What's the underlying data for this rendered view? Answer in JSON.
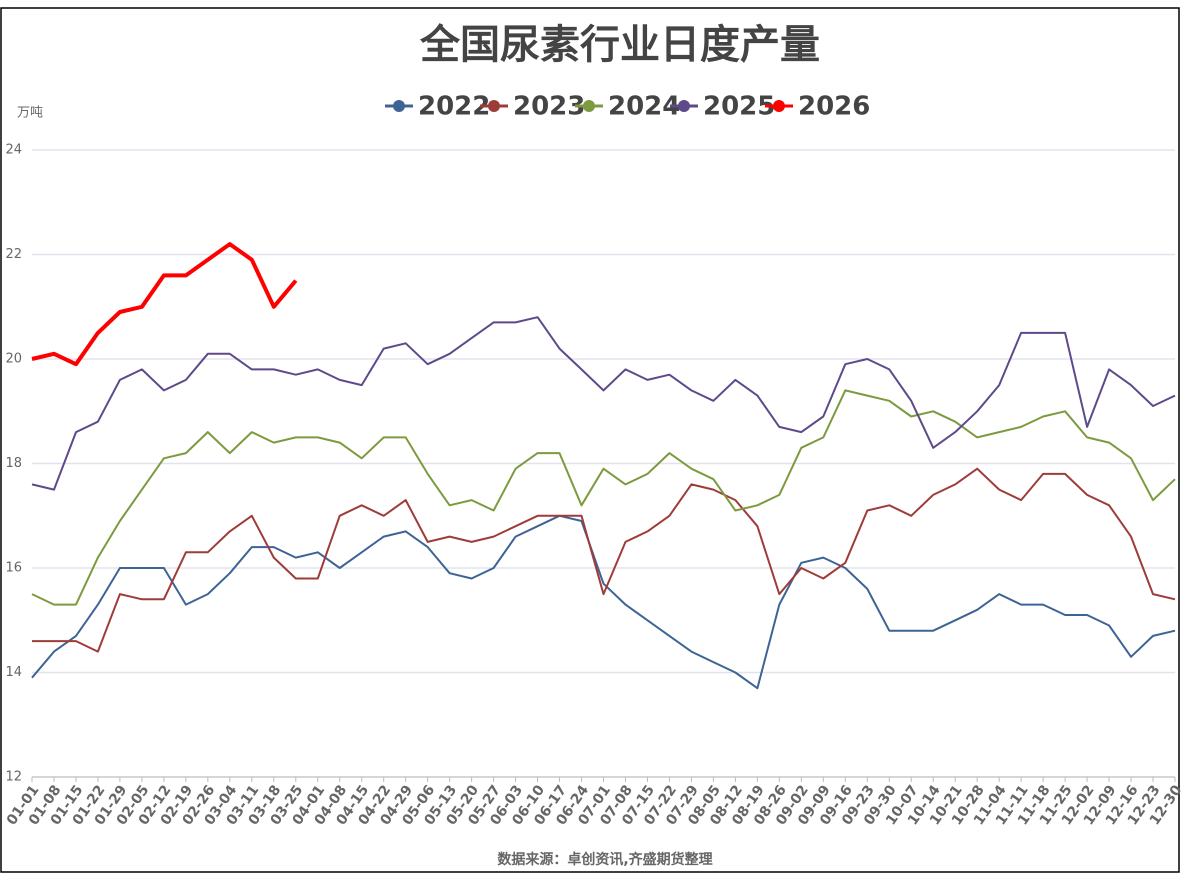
{
  "chart_data": {
    "type": "line",
    "title": "全国尿素行业日度产量",
    "y_unit": "万吨",
    "source": "数据来源：卓创资讯,齐盛期货整理",
    "categories": [
      "01-01",
      "01-08",
      "01-15",
      "01-22",
      "01-29",
      "02-05",
      "02-12",
      "02-19",
      "02-26",
      "03-04",
      "03-11",
      "03-18",
      "03-25",
      "04-01",
      "04-08",
      "04-15",
      "04-22",
      "04-29",
      "05-06",
      "05-13",
      "05-20",
      "05-27",
      "06-03",
      "06-10",
      "06-17",
      "06-24",
      "07-01",
      "07-08",
      "07-15",
      "07-22",
      "07-29",
      "08-05",
      "08-12",
      "08-19",
      "08-26",
      "09-02",
      "09-09",
      "09-16",
      "09-23",
      "09-30",
      "10-07",
      "10-14",
      "10-21",
      "10-28",
      "11-04",
      "11-11",
      "11-18",
      "11-25",
      "12-02",
      "12-09",
      "12-16",
      "12-23",
      "12-30"
    ],
    "ylim": [
      12,
      24
    ],
    "yticks": [
      12,
      14,
      16,
      18,
      20,
      22,
      24
    ],
    "grid": true,
    "series": [
      {
        "name": "2022",
        "color": "#3d6494",
        "values": [
          13.9,
          14.4,
          14.7,
          15.3,
          16.0,
          16.0,
          16.0,
          15.3,
          15.5,
          15.9,
          16.4,
          16.4,
          16.2,
          16.3,
          16.0,
          16.3,
          16.6,
          16.7,
          16.4,
          15.9,
          15.8,
          16.0,
          16.6,
          16.8,
          17.0,
          16.9,
          15.7,
          15.3,
          15.0,
          14.7,
          14.4,
          14.2,
          14.0,
          13.7,
          15.3,
          16.1,
          16.2,
          16.0,
          15.6,
          14.8,
          14.8,
          14.8,
          15.0,
          15.2,
          15.5,
          15.3,
          15.3,
          15.1,
          15.1,
          14.9,
          14.3,
          14.7,
          14.8
        ]
      },
      {
        "name": "2023",
        "color": "#9e3c3a",
        "values": [
          14.6,
          14.6,
          14.6,
          14.4,
          15.5,
          15.4,
          15.4,
          16.3,
          16.3,
          16.7,
          17.0,
          16.2,
          15.8,
          15.8,
          17.0,
          17.2,
          17.0,
          17.3,
          16.5,
          16.6,
          16.5,
          16.6,
          16.8,
          17.0,
          17.0,
          17.0,
          15.5,
          16.5,
          16.7,
          17.0,
          17.6,
          17.5,
          17.3,
          16.8,
          15.5,
          16.0,
          15.8,
          16.1,
          17.1,
          17.2,
          17.0,
          17.4,
          17.6,
          17.9,
          17.5,
          17.3,
          17.8,
          17.8,
          17.4,
          17.2,
          16.6,
          15.5,
          15.4
        ]
      },
      {
        "name": "2024",
        "color": "#7c9a3e",
        "values": [
          15.5,
          15.3,
          15.3,
          16.2,
          16.9,
          17.5,
          18.1,
          18.2,
          18.6,
          18.2,
          18.6,
          18.4,
          18.5,
          18.5,
          18.4,
          18.1,
          18.5,
          18.5,
          17.8,
          17.2,
          17.3,
          17.1,
          17.9,
          18.2,
          18.2,
          17.2,
          17.9,
          17.6,
          17.8,
          18.2,
          17.9,
          17.7,
          17.1,
          17.2,
          17.4,
          18.3,
          18.5,
          19.4,
          19.3,
          19.2,
          18.9,
          19.0,
          18.8,
          18.5,
          18.6,
          18.7,
          18.9,
          19.0,
          18.5,
          18.4,
          18.1,
          17.3,
          17.7
        ]
      },
      {
        "name": "2025",
        "color": "#5e4a8a",
        "values": [
          17.6,
          17.5,
          18.6,
          18.8,
          19.6,
          19.8,
          19.4,
          19.6,
          20.1,
          20.1,
          19.8,
          19.8,
          19.7,
          19.8,
          19.6,
          19.5,
          20.2,
          20.3,
          19.9,
          20.1,
          20.4,
          20.7,
          20.7,
          20.8,
          20.2,
          19.8,
          19.4,
          19.8,
          19.6,
          19.7,
          19.4,
          19.2,
          19.6,
          19.3,
          18.7,
          18.6,
          18.9,
          19.9,
          20.0,
          19.8,
          19.2,
          18.3,
          18.6,
          19.0,
          19.5,
          20.5,
          20.5,
          20.5,
          18.7,
          19.8,
          19.5,
          19.1,
          19.3
        ]
      },
      {
        "name": "2026",
        "color": "#ff0000",
        "values": [
          20.0,
          20.1,
          19.9,
          20.5,
          20.9,
          21.0,
          21.6,
          21.6,
          21.9,
          22.2,
          21.9,
          21.0,
          21.5,
          null,
          null,
          null,
          null,
          null,
          null,
          null,
          null,
          null,
          null,
          null,
          null,
          null,
          null,
          null,
          null,
          null,
          null,
          null,
          null,
          null,
          null,
          null,
          null,
          null,
          null,
          null,
          null,
          null,
          null,
          null,
          null,
          null,
          null,
          null,
          null,
          null,
          null,
          null,
          null
        ]
      }
    ]
  }
}
